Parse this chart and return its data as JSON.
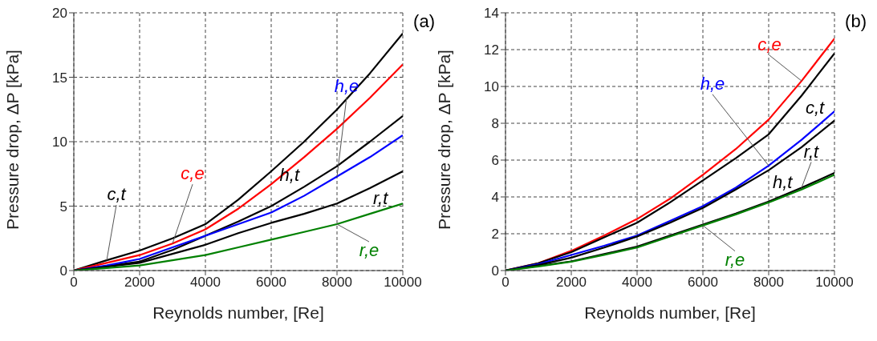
{
  "chart_data": [
    {
      "type": "line",
      "xlabel": "Reynolds number, [Re]",
      "ylabel": "Pressure drop, ΔP [kPa]",
      "x": [
        0,
        1000,
        2000,
        3000,
        4000,
        5000,
        6000,
        7000,
        8000,
        9000,
        10000
      ],
      "xlim": [
        0,
        10000
      ],
      "xticks": [
        0,
        2000,
        4000,
        6000,
        8000,
        10000
      ],
      "ylim": [
        0,
        20
      ],
      "yticks": [
        0,
        5,
        10,
        15,
        20
      ],
      "grid": true,
      "legend": false,
      "marker": "none",
      "line_style": "solid",
      "annotations": [
        "(a)"
      ],
      "series": [
        {
          "name": "c,t",
          "color": "#000000",
          "values": [
            0,
            0.8,
            1.55,
            2.5,
            3.6,
            5.5,
            7.7,
            10.0,
            12.5,
            15.3,
            18.4
          ]
        },
        {
          "name": "c,e",
          "color": "#ff0000",
          "values": [
            0,
            0.6,
            1.2,
            2.1,
            3.2,
            4.8,
            6.7,
            8.8,
            11.0,
            13.4,
            16.0
          ]
        },
        {
          "name": "h,t",
          "color": "#000000",
          "values": [
            0,
            0.35,
            0.7,
            1.6,
            2.7,
            3.8,
            5.0,
            6.5,
            8.1,
            10.0,
            12.0
          ]
        },
        {
          "name": "h,e",
          "color": "#0000ff",
          "values": [
            0,
            0.4,
            0.9,
            1.8,
            2.7,
            3.6,
            4.5,
            5.8,
            7.3,
            8.8,
            10.5
          ]
        },
        {
          "name": "r,t",
          "color": "#000000",
          "values": [
            0,
            0.3,
            0.6,
            1.3,
            2.0,
            2.9,
            3.7,
            4.4,
            5.2,
            6.4,
            7.7
          ]
        },
        {
          "name": "r,e",
          "color": "#008000",
          "values": [
            0,
            0.2,
            0.4,
            0.8,
            1.2,
            1.8,
            2.4,
            3.0,
            3.6,
            4.4,
            5.2
          ]
        }
      ]
    },
    {
      "type": "line",
      "xlabel": "Reynolds number, [Re]",
      "ylabel": "Pressure drop, ΔP [kPa]",
      "x": [
        0,
        1000,
        2000,
        3000,
        4000,
        5000,
        6000,
        7000,
        8000,
        9000,
        10000
      ],
      "xlim": [
        0,
        10000
      ],
      "xticks": [
        0,
        2000,
        4000,
        6000,
        8000,
        10000
      ],
      "ylim": [
        0,
        14
      ],
      "yticks": [
        0,
        2,
        4,
        6,
        8,
        10,
        12,
        14
      ],
      "grid": true,
      "legend": false,
      "marker": "none",
      "line_style": "solid",
      "annotations": [
        "(b)"
      ],
      "series": [
        {
          "name": "c,e",
          "color": "#ff0000",
          "values": [
            0,
            0.4,
            1.07,
            1.9,
            2.8,
            3.9,
            5.2,
            6.6,
            8.2,
            10.3,
            12.6
          ]
        },
        {
          "name": "c,t",
          "color": "#000000",
          "values": [
            0,
            0.4,
            1.0,
            1.8,
            2.6,
            3.7,
            4.9,
            6.1,
            7.4,
            9.5,
            11.8
          ]
        },
        {
          "name": "h,e",
          "color": "#0000ff",
          "values": [
            0,
            0.35,
            0.85,
            1.35,
            1.9,
            2.7,
            3.5,
            4.5,
            5.7,
            7.1,
            8.65
          ]
        },
        {
          "name": "h,t",
          "color": "#000000",
          "values": [
            0,
            0.3,
            0.7,
            1.25,
            1.85,
            2.6,
            3.4,
            4.4,
            5.45,
            6.7,
            8.15
          ]
        },
        {
          "name": "r,t",
          "color": "#000000",
          "values": [
            0,
            0.25,
            0.5,
            0.9,
            1.3,
            1.9,
            2.5,
            3.1,
            3.75,
            4.5,
            5.3
          ]
        },
        {
          "name": "r,e",
          "color": "#008000",
          "values": [
            0,
            0.22,
            0.48,
            0.85,
            1.25,
            1.85,
            2.45,
            3.05,
            3.7,
            4.4,
            5.2
          ]
        }
      ]
    }
  ]
}
